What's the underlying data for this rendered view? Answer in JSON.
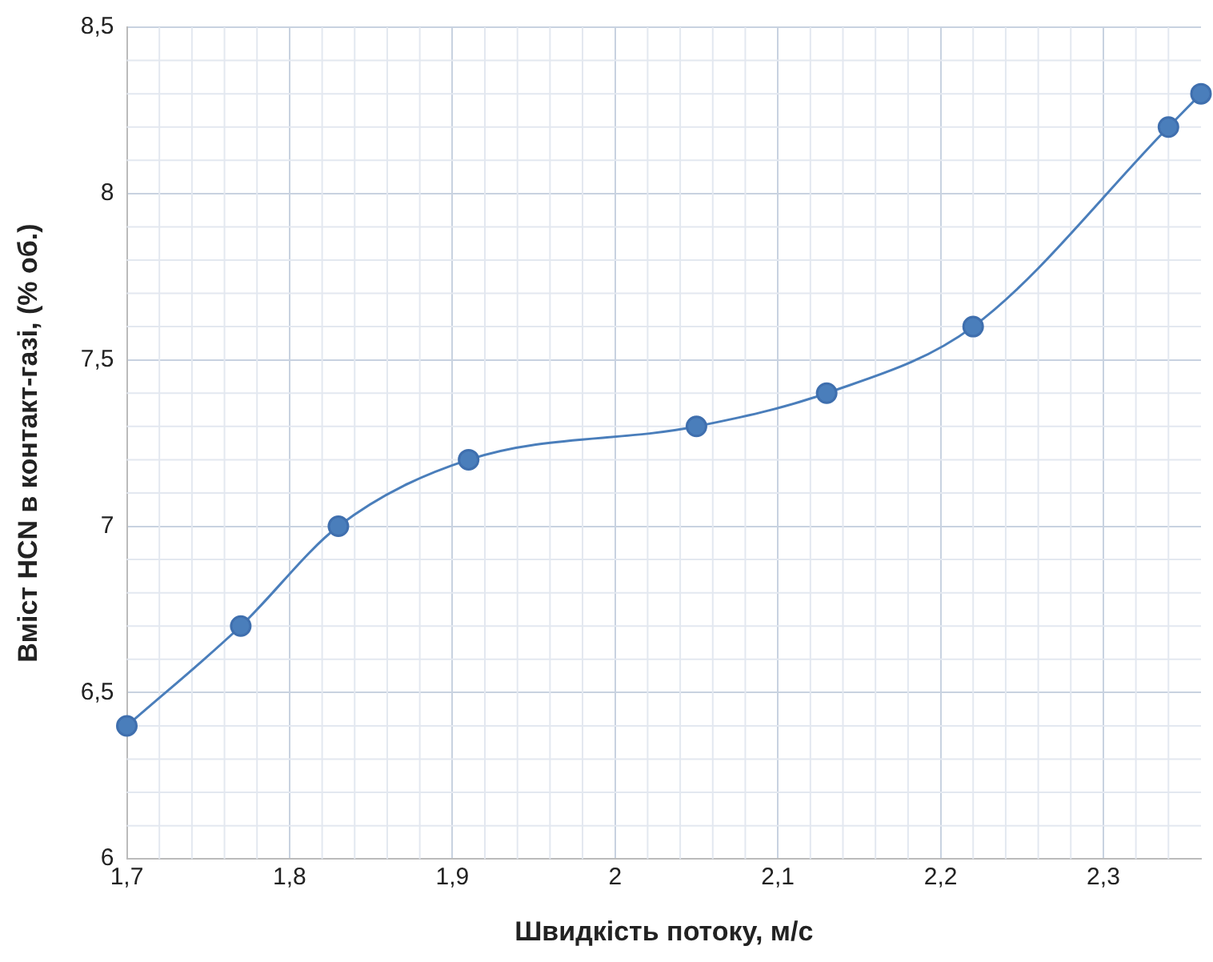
{
  "chart_data": {
    "type": "line",
    "xlabel": "Швидкість потоку, м/с",
    "ylabel": "Вміст HCN в контакт-газі, (% об.)",
    "x": [
      1.7,
      1.77,
      1.83,
      1.91,
      2.05,
      2.13,
      2.22,
      2.34,
      2.36
    ],
    "series": [
      {
        "color": "#4a7ebb",
        "values": [
          6.4,
          6.7,
          7.0,
          7.2,
          7.3,
          7.4,
          7.6,
          8.2,
          8.3
        ]
      }
    ],
    "xlim": [
      1.7,
      2.36
    ],
    "ylim": [
      6,
      8.5
    ],
    "xticks": [
      {
        "value": 1.7,
        "label": "1,7"
      },
      {
        "value": 1.8,
        "label": "1,8"
      },
      {
        "value": 1.9,
        "label": "1,9"
      },
      2,
      {
        "value": 2.1,
        "label": "2,1"
      },
      {
        "value": 2.2,
        "label": "2,2"
      },
      {
        "value": 2.3,
        "label": "2,3"
      }
    ],
    "yticks": [
      6,
      {
        "value": 6.5,
        "label": "6,5"
      },
      7,
      {
        "value": 7.5,
        "label": "7,5"
      },
      8,
      {
        "value": 8.5,
        "label": "8,5"
      }
    ],
    "grid": true,
    "marker": "circle",
    "line_style": "solid",
    "legend": false
  }
}
